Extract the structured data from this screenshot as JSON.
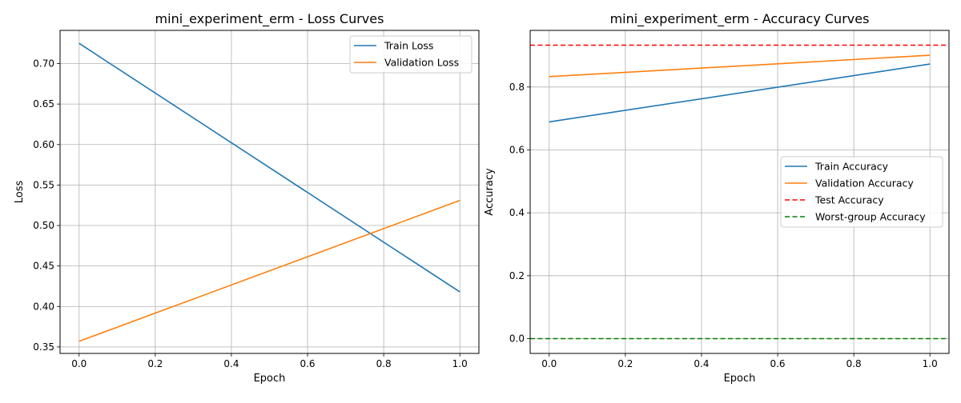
{
  "chart_data": [
    {
      "type": "line",
      "title": "mini_experiment_erm - Loss Curves",
      "xlabel": "Epoch",
      "ylabel": "Loss",
      "xlim": [
        -0.05,
        1.05
      ],
      "ylim": [
        0.342,
        0.741
      ],
      "xticks": [
        0.0,
        0.2,
        0.4,
        0.6,
        0.8,
        1.0
      ],
      "xtick_labels": [
        "0.0",
        "0.2",
        "0.4",
        "0.6",
        "0.8",
        "1.0"
      ],
      "yticks": [
        0.35,
        0.4,
        0.45,
        0.5,
        0.55,
        0.6,
        0.65,
        0.7
      ],
      "ytick_labels": [
        "0.35",
        "0.40",
        "0.45",
        "0.50",
        "0.55",
        "0.60",
        "0.65",
        "0.70"
      ],
      "grid": true,
      "legend_position": "top-right",
      "series": [
        {
          "name": "Train Loss",
          "color": "#1f77b4",
          "dashed": false,
          "x": [
            0.0,
            1.0
          ],
          "values": [
            0.725,
            0.418
          ]
        },
        {
          "name": "Validation Loss",
          "color": "#ff7f0e",
          "dashed": false,
          "x": [
            0.0,
            1.0
          ],
          "values": [
            0.357,
            0.531
          ]
        }
      ]
    },
    {
      "type": "line",
      "title": "mini_experiment_erm - Accuracy Curves",
      "xlabel": "Epoch",
      "ylabel": "Accuracy",
      "xlim": [
        -0.05,
        1.05
      ],
      "ylim": [
        -0.047,
        0.98
      ],
      "xticks": [
        0.0,
        0.2,
        0.4,
        0.6,
        0.8,
        1.0
      ],
      "xtick_labels": [
        "0.0",
        "0.2",
        "0.4",
        "0.6",
        "0.8",
        "1.0"
      ],
      "yticks": [
        0.0,
        0.2,
        0.4,
        0.6,
        0.8
      ],
      "ytick_labels": [
        "0.0",
        "0.2",
        "0.4",
        "0.6",
        "0.8"
      ],
      "grid": true,
      "legend_position": "center-right",
      "series": [
        {
          "name": "Train Accuracy",
          "color": "#1f77b4",
          "dashed": false,
          "x": [
            0.0,
            1.0
          ],
          "values": [
            0.689,
            0.873
          ]
        },
        {
          "name": "Validation Accuracy",
          "color": "#ff7f0e",
          "dashed": false,
          "x": [
            0.0,
            1.0
          ],
          "values": [
            0.833,
            0.901
          ]
        },
        {
          "name": "Test Accuracy",
          "color": "#ff0000",
          "dashed": true,
          "hline": 0.933
        },
        {
          "name": "Worst-group Accuracy",
          "color": "#008000",
          "dashed": true,
          "hline": 0.0
        }
      ]
    }
  ]
}
